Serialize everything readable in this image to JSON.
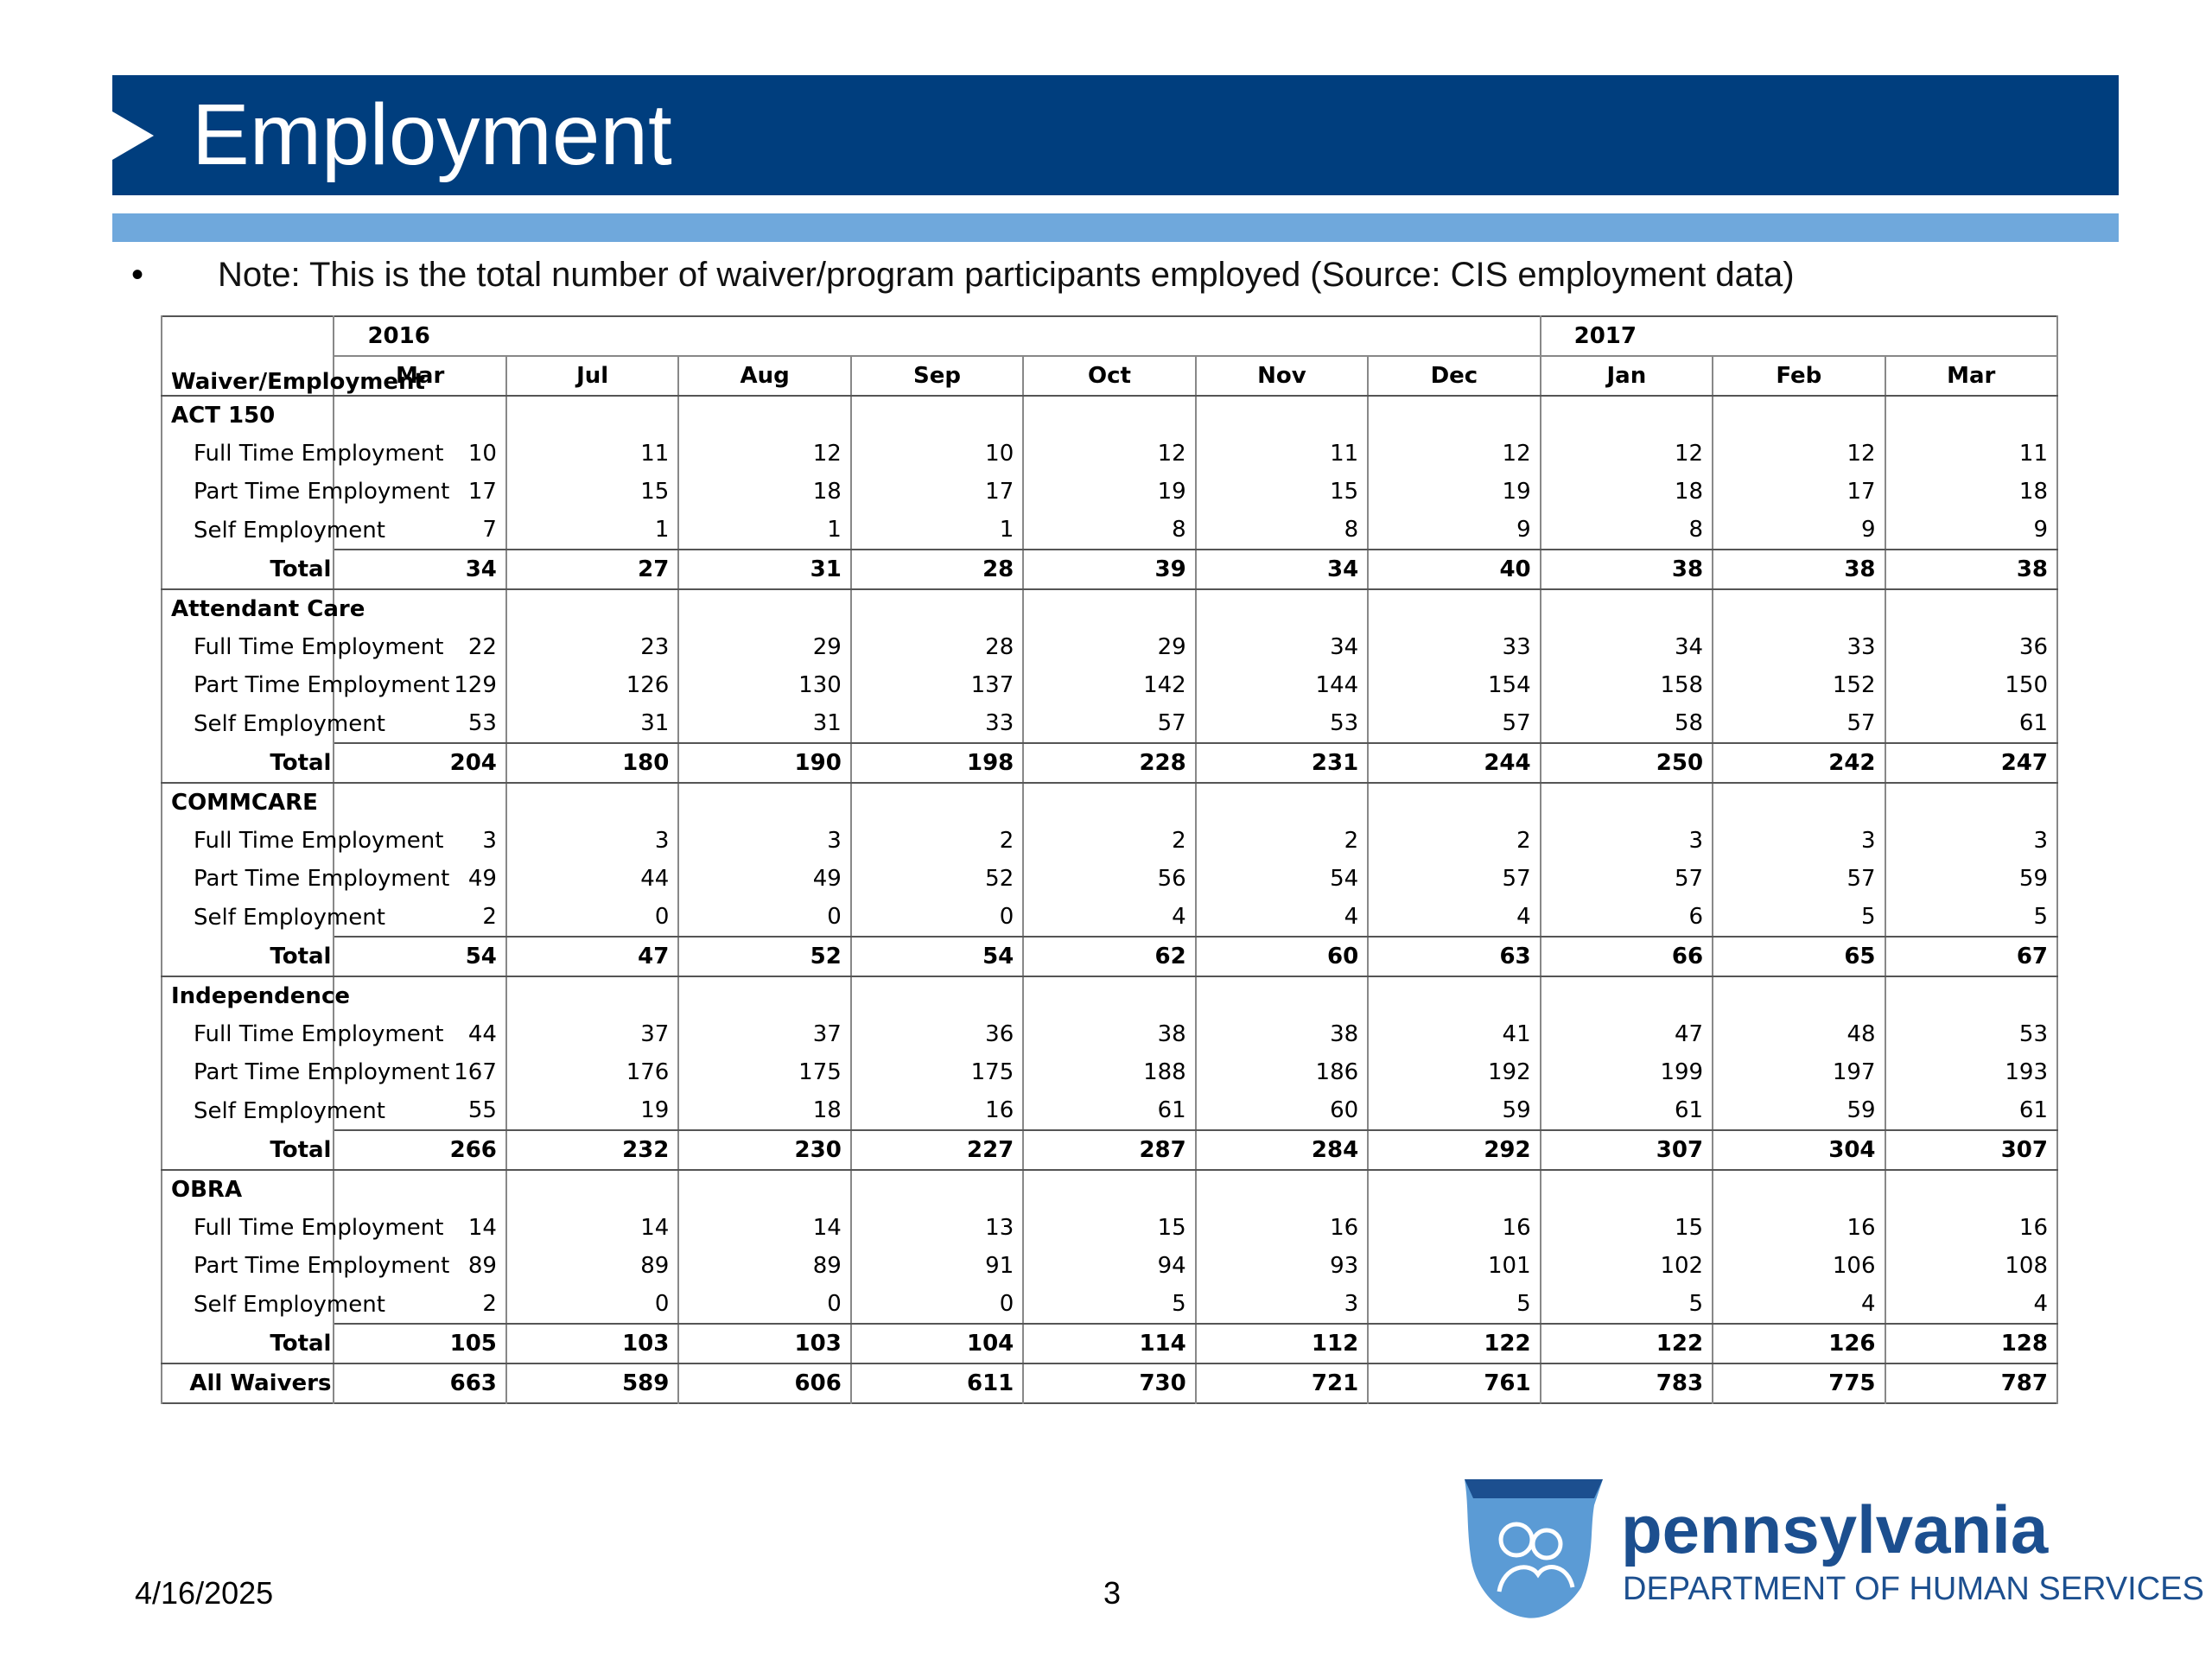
{
  "header": {
    "title": "Employment"
  },
  "note": "Note: This is the total number of waiver/program participants employed (Source: CIS employment data)",
  "table": {
    "corner": "Waiver/Employment",
    "years": [
      "2016",
      null,
      null,
      null,
      null,
      null,
      null,
      "2017",
      null,
      null
    ],
    "months": [
      "Mar",
      "Jul",
      "Aug",
      "Sep",
      "Oct",
      "Nov",
      "Dec",
      "Jan",
      "Feb",
      "Mar"
    ],
    "groups": [
      {
        "name": "ACT 150",
        "rows": [
          {
            "label": "Full Time Employment",
            "values": [
              10,
              11,
              12,
              10,
              12,
              11,
              12,
              12,
              12,
              11
            ]
          },
          {
            "label": "Part Time Employment",
            "values": [
              17,
              15,
              18,
              17,
              19,
              15,
              19,
              18,
              17,
              18
            ]
          },
          {
            "label": "Self Employment",
            "values": [
              7,
              1,
              1,
              1,
              8,
              8,
              9,
              8,
              9,
              9
            ]
          }
        ],
        "total_label": "Total",
        "total": [
          34,
          27,
          31,
          28,
          39,
          34,
          40,
          38,
          38,
          38
        ]
      },
      {
        "name": "Attendant Care",
        "rows": [
          {
            "label": "Full Time Employment",
            "values": [
              22,
              23,
              29,
              28,
              29,
              34,
              33,
              34,
              33,
              36
            ]
          },
          {
            "label": "Part Time Employment",
            "values": [
              129,
              126,
              130,
              137,
              142,
              144,
              154,
              158,
              152,
              150
            ]
          },
          {
            "label": "Self Employment",
            "values": [
              53,
              31,
              31,
              33,
              57,
              53,
              57,
              58,
              57,
              61
            ]
          }
        ],
        "total_label": "Total",
        "total": [
          204,
          180,
          190,
          198,
          228,
          231,
          244,
          250,
          242,
          247
        ]
      },
      {
        "name": "COMMCARE",
        "rows": [
          {
            "label": "Full Time Employment",
            "values": [
              3,
              3,
              3,
              2,
              2,
              2,
              2,
              3,
              3,
              3
            ]
          },
          {
            "label": "Part Time Employment",
            "values": [
              49,
              44,
              49,
              52,
              56,
              54,
              57,
              57,
              57,
              59
            ]
          },
          {
            "label": "Self Employment",
            "values": [
              2,
              0,
              0,
              0,
              4,
              4,
              4,
              6,
              5,
              5
            ]
          }
        ],
        "total_label": "Total",
        "total": [
          54,
          47,
          52,
          54,
          62,
          60,
          63,
          66,
          65,
          67
        ]
      },
      {
        "name": "Independence",
        "rows": [
          {
            "label": "Full Time Employment",
            "values": [
              44,
              37,
              37,
              36,
              38,
              38,
              41,
              47,
              48,
              53
            ]
          },
          {
            "label": "Part Time Employment",
            "values": [
              167,
              176,
              175,
              175,
              188,
              186,
              192,
              199,
              197,
              193
            ]
          },
          {
            "label": "Self Employment",
            "values": [
              55,
              19,
              18,
              16,
              61,
              60,
              59,
              61,
              59,
              61
            ]
          }
        ],
        "total_label": "Total",
        "total": [
          266,
          232,
          230,
          227,
          287,
          284,
          292,
          307,
          304,
          307
        ]
      },
      {
        "name": "OBRA",
        "rows": [
          {
            "label": "Full Time Employment",
            "values": [
              14,
              14,
              14,
              13,
              15,
              16,
              16,
              15,
              16,
              16
            ]
          },
          {
            "label": "Part Time Employment",
            "values": [
              89,
              89,
              89,
              91,
              94,
              93,
              101,
              102,
              106,
              108
            ]
          },
          {
            "label": "Self Employment",
            "values": [
              2,
              0,
              0,
              0,
              5,
              3,
              5,
              5,
              4,
              4
            ]
          }
        ],
        "total_label": "Total",
        "total": [
          105,
          103,
          103,
          104,
          114,
          112,
          122,
          122,
          126,
          128
        ]
      }
    ],
    "grand_total": {
      "label": "All Waivers",
      "values": [
        663,
        589,
        606,
        611,
        730,
        721,
        761,
        783,
        775,
        787
      ]
    }
  },
  "footer": {
    "date": "4/16/2025",
    "page": "3"
  },
  "logo": {
    "name": "pennsylvania",
    "department": "DEPARTMENT OF HUMAN SERVICES"
  }
}
